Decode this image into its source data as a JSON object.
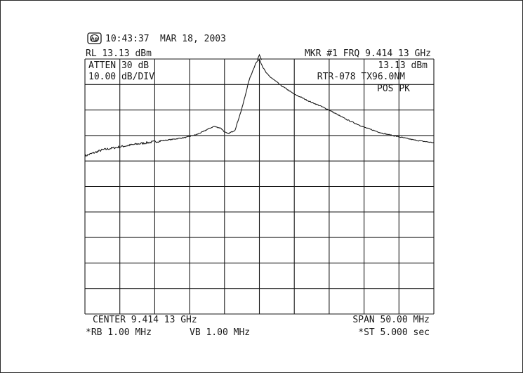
{
  "header": {
    "logo_text": "hp",
    "time": "10:43:37",
    "date": "MAR 18, 2003",
    "reference_level": "RL 13.13 dBm",
    "marker_label": "MKR #1 FRQ 9.414 13 GHz",
    "attenuation": "ATTEN 30 dB",
    "marker_amplitude": "13.13 dBm",
    "scale": "10.00 dB/DIV",
    "trace_note": "RTR-078 TX96.0NM",
    "detector": "POS PK"
  },
  "footer": {
    "center_freq": "CENTER 9.414 13 GHz",
    "span": "SPAN 50.00 MHz",
    "resolution_bw": "*RB 1.00 MHz",
    "video_bw": "VB 1.00 MHz",
    "sweep_time": "*ST 5.000 sec"
  },
  "colors": {
    "trace": "#1a1a1a",
    "grid": "#1a1a1a",
    "background": "#ffffff"
  },
  "chart_data": {
    "type": "line",
    "grid": true,
    "x_unit": "MHz offset from center",
    "y_unit": "dBm",
    "xlim": [
      -25,
      25
    ],
    "ylim": [
      -86.87,
      13.13
    ],
    "x_divisions": 10,
    "y_divisions": 10,
    "marker": {
      "x": 0,
      "y": 13.13
    },
    "series": [
      {
        "values_x": [
          -25,
          -22.5,
          -20,
          -17.5,
          -15,
          -12.5,
          -10.5,
          -9,
          -8,
          -7.5,
          -6.5,
          -5.5,
          -5,
          -4.5,
          -3.5,
          -2.5,
          -2,
          -1.5,
          -1,
          -0.5,
          0,
          0.5,
          1,
          1.5,
          2.5,
          3,
          4,
          5,
          6,
          7,
          8.5,
          10,
          12.5,
          15,
          17.5,
          20,
          22.5,
          25
        ],
        "values_y": [
          -24.9,
          -22.5,
          -21.3,
          -20.2,
          -19.3,
          -18.4,
          -17.6,
          -16.5,
          -15.3,
          -14.5,
          -13.3,
          -14.0,
          -15.5,
          -16.2,
          -14.8,
          -6.2,
          -0.9,
          4.7,
          8.2,
          11.6,
          13.1,
          9.9,
          7.6,
          6.2,
          4.1,
          2.9,
          1.2,
          -0.7,
          -1.9,
          -3.3,
          -5.0,
          -6.9,
          -10.6,
          -13.6,
          -15.9,
          -17.4,
          -18.8,
          -19.7
        ]
      }
    ]
  }
}
